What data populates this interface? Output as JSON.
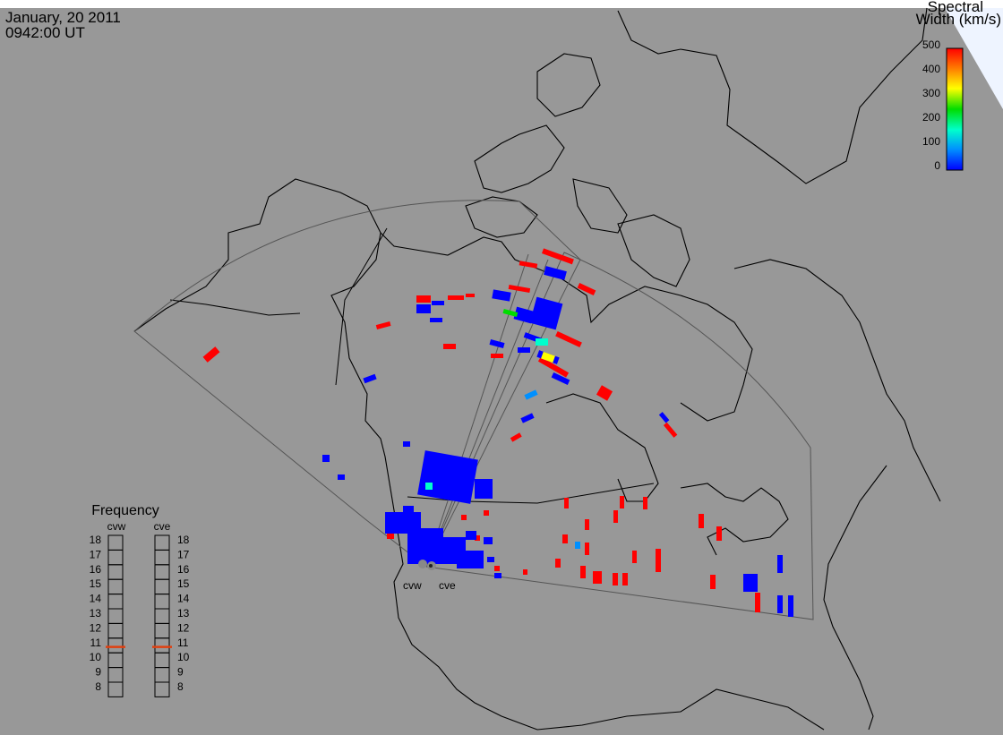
{
  "header": {
    "date": "January, 20 2011",
    "time": "0942:00 UT"
  },
  "colorbar": {
    "title_line1": "Spectral",
    "title_line2": "Width (km/s)",
    "ticks": [
      "500",
      "400",
      "300",
      "200",
      "100",
      "0"
    ],
    "colors": [
      "#ff0000",
      "#ff8000",
      "#ffff00",
      "#00dd00",
      "#00ffcc",
      "#0090ff",
      "#0000ff"
    ]
  },
  "frequency_panel": {
    "title": "Frequency",
    "radars": [
      {
        "name": "cvw",
        "value_mhz": 10.9
      },
      {
        "name": "cve",
        "value_mhz": 10.9
      }
    ],
    "ticks": [
      "18",
      "17",
      "16",
      "15",
      "14",
      "13",
      "12",
      "11",
      "10",
      "9",
      "8"
    ]
  },
  "radars": {
    "site_labels": [
      "cvw",
      "cve"
    ]
  },
  "colors": {
    "background": "#989898",
    "coast": "#000000",
    "fov": "#555555",
    "marker": "#e04010",
    "scatter_red": "#ff0000",
    "scatter_blue": "#0000ff"
  }
}
